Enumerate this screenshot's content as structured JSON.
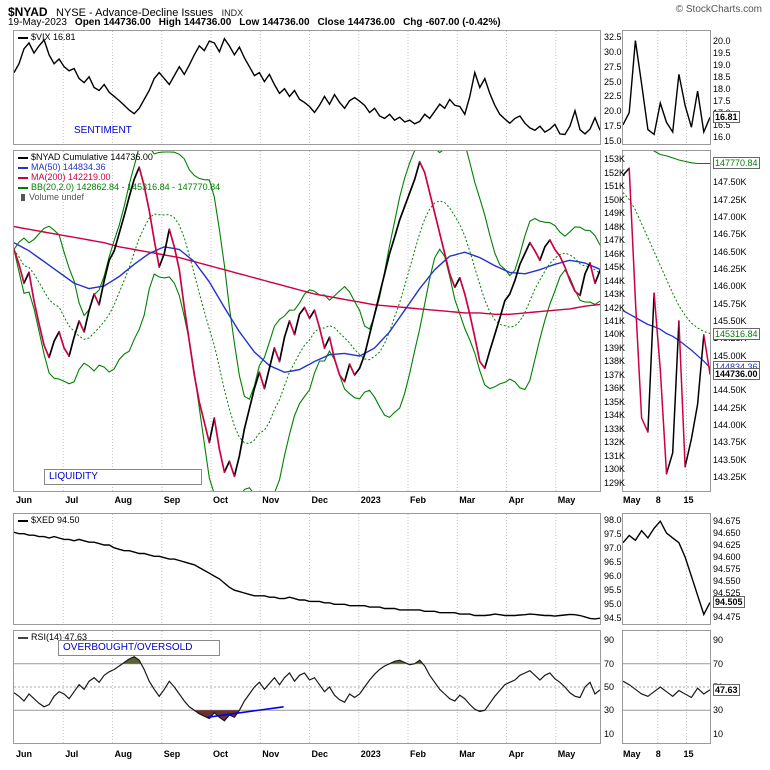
{
  "header": {
    "symbol": "$NYAD",
    "title": "NYSE - Advance-Decline Issues",
    "exchange": "INDX",
    "copyright": "© StockCharts.com",
    "date": "19-May-2023",
    "ohlc": [
      {
        "label": "Open",
        "value": "144736.00"
      },
      {
        "label": "High",
        "value": "144736.00"
      },
      {
        "label": "Low",
        "value": "144736.00"
      },
      {
        "label": "Close",
        "value": "144736.00"
      },
      {
        "label": "Chg",
        "value": "-607.00 (-0.42%)"
      }
    ]
  },
  "annotations": {
    "sentiment": "SENTIMENT",
    "liquidity": "LIQUIDITY",
    "overbought": "OVERBOUGHT/OVERSOLD"
  },
  "months": [
    "Jun",
    "Jul",
    "Aug",
    "Sep",
    "Oct",
    "Nov",
    "Dec",
    "2023",
    "Feb",
    "Mar",
    "Apr",
    "May"
  ],
  "zoom_axis": [
    "May",
    "8",
    "15"
  ],
  "colors": {
    "line": "#000000",
    "ma50": "#2233cc",
    "ma200": "#cc0044",
    "down": "#cc0044",
    "bb": "#008000",
    "grid": "#c4c4c4",
    "border": "#999999",
    "note": "#0000cc",
    "threshold": "#999999",
    "fill_over": "#5a6430",
    "fill_under": "#6b2f2f",
    "volume": "#555555",
    "trend": "#0000ee"
  },
  "chart_data": [
    {
      "id": "vix",
      "type": "line",
      "name": "$VIX",
      "legend": "$VIX 16.81",
      "last": 16.81,
      "ylim": [
        14.5,
        33.5
      ],
      "yticks": [
        [
          "32.5",
          32.5
        ],
        [
          "30.0",
          30
        ],
        [
          "27.5",
          27.5
        ],
        [
          "25.0",
          25
        ],
        [
          "22.5",
          22.5
        ],
        [
          "20.0",
          20
        ],
        [
          "17.5",
          17.5
        ],
        [
          "15.0",
          15
        ]
      ],
      "values": [
        26.5,
        28.0,
        30.5,
        31.5,
        29.8,
        31.0,
        32.0,
        29.5,
        28.0,
        28.8,
        27.5,
        26.8,
        27.2,
        25.5,
        24.8,
        25.8,
        24.0,
        23.5,
        24.5,
        23.2,
        22.5,
        21.8,
        21.0,
        20.2,
        19.6,
        20.5,
        22.0,
        23.5,
        25.5,
        26.5,
        25.5,
        24.5,
        26.0,
        27.5,
        26.2,
        27.8,
        29.5,
        31.0,
        30.2,
        31.8,
        31.5,
        30.0,
        32.2,
        31.0,
        29.5,
        30.8,
        29.0,
        27.5,
        26.0,
        26.5,
        25.0,
        26.2,
        24.5,
        23.0,
        23.8,
        22.5,
        23.5,
        22.0,
        21.5,
        20.8,
        19.8,
        21.0,
        22.5,
        21.2,
        22.8,
        21.5,
        20.5,
        21.8,
        22.3,
        21.7,
        21.0,
        19.8,
        20.5,
        19.2,
        18.8,
        19.5,
        18.5,
        19.0,
        18.2,
        18.5,
        17.9,
        18.3,
        19.5,
        18.8,
        20.0,
        21.2,
        20.5,
        22.0,
        21.0,
        20.8,
        19.5,
        22.5,
        26.5,
        24.0,
        25.5,
        23.0,
        21.0,
        19.5,
        18.7,
        18.0,
        18.8,
        19.2,
        18.0,
        17.2,
        16.8,
        17.5,
        16.5,
        17.0,
        17.8,
        16.2,
        16.1,
        17.5,
        20.1,
        16.9,
        16.2,
        17.0,
        18.9,
        16.81
      ],
      "zoom": {
        "ylim": [
          15.7,
          20.4
        ],
        "yticks": [
          [
            "20.0",
            20
          ],
          [
            "19.5",
            19.5
          ],
          [
            "19.0",
            19
          ],
          [
            "18.5",
            18.5
          ],
          [
            "18.0",
            18
          ],
          [
            "17.5",
            17.5
          ],
          [
            "17.0",
            17
          ],
          [
            "16.5",
            16.5
          ],
          [
            "16.0",
            16
          ]
        ],
        "values": [
          16.5,
          17.0,
          20.0,
          18.2,
          16.3,
          16.1,
          17.4,
          16.6,
          16.2,
          18.6,
          17.3,
          16.4,
          17.9,
          16.2,
          16.81
        ],
        "value_labels": [
          {
            "text": "16.81",
            "value": 16.81,
            "color": "#000000",
            "bold": true
          }
        ]
      }
    },
    {
      "id": "nyad",
      "type": "line-updown",
      "name": "$NYAD Cumulative",
      "legend_items": [
        {
          "label": "$NYAD Cumulative 144736.00",
          "color": "#000000",
          "icon": "line"
        },
        {
          "label": "MA(50) 144834.36",
          "color": "#2233cc",
          "icon": "line"
        },
        {
          "label": "MA(200) 142219.00",
          "color": "#cc0044",
          "icon": "line"
        },
        {
          "label": "BB(20,2.0) 142862.84 - 145316.84 - 147770.84",
          "color": "#008000",
          "icon": "line"
        },
        {
          "label": "Volume undef",
          "color": "#555555",
          "icon": "bar"
        }
      ],
      "ylim": [
        128.4,
        153.6
      ],
      "unit": "K",
      "yticks": [
        [
          "153K",
          153
        ],
        [
          "152K",
          152
        ],
        [
          "151K",
          151
        ],
        [
          "150K",
          150
        ],
        [
          "149K",
          149
        ],
        [
          "148K",
          148
        ],
        [
          "147K",
          147
        ],
        [
          "146K",
          146
        ],
        [
          "145K",
          145
        ],
        [
          "144K",
          144
        ],
        [
          "143K",
          143
        ],
        [
          "142K",
          142
        ],
        [
          "141K",
          141
        ],
        [
          "140K",
          140
        ],
        [
          "139K",
          139
        ],
        [
          "138K",
          138
        ],
        [
          "137K",
          137
        ],
        [
          "136K",
          136
        ],
        [
          "135K",
          135
        ],
        [
          "134K",
          134
        ],
        [
          "133K",
          133
        ],
        [
          "132K",
          132
        ],
        [
          "131K",
          131
        ],
        [
          "130K",
          130
        ],
        [
          "129K",
          129
        ]
      ],
      "values": [
        146.3,
        145.2,
        143.8,
        144.6,
        142.5,
        140.8,
        139.2,
        138.3,
        139.5,
        140.2,
        139.0,
        138.4,
        139.8,
        141.0,
        140.2,
        141.8,
        143.0,
        142.2,
        144.0,
        145.5,
        146.2,
        147.5,
        148.8,
        150.2,
        151.5,
        152.4,
        151.0,
        149.2,
        147.0,
        145.0,
        146.0,
        147.8,
        146.5,
        144.8,
        142.0,
        139.5,
        137.0,
        135.0,
        133.5,
        132.0,
        133.8,
        131.5,
        129.8,
        130.6,
        129.5,
        131.0,
        133.0,
        134.5,
        136.0,
        137.2,
        136.0,
        137.5,
        139.0,
        138.0,
        139.8,
        141.0,
        140.0,
        141.5,
        142.0,
        141.2,
        141.8,
        140.5,
        139.0,
        139.8,
        138.2,
        137.0,
        136.5,
        137.8,
        137.0,
        137.5,
        138.5,
        140.0,
        141.5,
        143.0,
        144.5,
        146.0,
        147.2,
        148.5,
        149.5,
        150.5,
        151.5,
        152.8,
        152.0,
        150.5,
        149.0,
        147.5,
        146.0,
        144.5,
        143.5,
        144.2,
        143.0,
        141.5,
        139.8,
        138.0,
        137.5,
        138.8,
        140.0,
        141.2,
        142.5,
        143.0,
        144.0,
        145.2,
        146.0,
        146.8,
        146.2,
        145.5,
        146.5,
        147.0,
        146.3,
        145.8,
        145.0,
        144.0,
        143.2,
        142.9,
        144.5,
        145.3,
        143.8,
        144.736
      ],
      "ma50": [
        146.8,
        146.2,
        145.4,
        144.6,
        143.8,
        143.4,
        143.6,
        144.3,
        145.2,
        146.0,
        146.5,
        146.3,
        145.4,
        143.9,
        142.0,
        140.2,
        138.7,
        137.7,
        137.2,
        137.4,
        138.0,
        138.5,
        138.6,
        138.4,
        139.0,
        140.2,
        141.8,
        143.4,
        144.8,
        145.8,
        146.1,
        145.7,
        145.1,
        144.6,
        144.5,
        144.8,
        145.2,
        145.5,
        145.3,
        144.83
      ],
      "ma200": [
        148.0,
        147.8,
        147.6,
        147.4,
        147.2,
        147.0,
        146.8,
        146.5,
        146.3,
        146.1,
        145.9,
        145.7,
        145.4,
        145.1,
        144.8,
        144.5,
        144.2,
        143.9,
        143.6,
        143.3,
        143.0,
        142.8,
        142.6,
        142.4,
        142.2,
        142.1,
        142.0,
        141.9,
        141.8,
        141.7,
        141.6,
        141.6,
        141.5,
        141.5,
        141.6,
        141.7,
        141.8,
        141.9,
        142.1,
        142.22
      ],
      "zoom": {
        "ylim": [
          143.05,
          147.95
        ],
        "yticks": [
          [
            "147.50K",
            147.5
          ],
          [
            "147.25K",
            147.25
          ],
          [
            "147.00K",
            147
          ],
          [
            "146.75K",
            146.75
          ],
          [
            "146.50K",
            146.5
          ],
          [
            "146.25K",
            146.25
          ],
          [
            "146.00K",
            146
          ],
          [
            "145.75K",
            145.75
          ],
          [
            "145.50K",
            145.5
          ],
          [
            "145.25K",
            145.25
          ],
          [
            "145.00K",
            145
          ],
          [
            "144.75K",
            144.75
          ],
          [
            "144.50K",
            144.5
          ],
          [
            "144.25K",
            144.25
          ],
          [
            "144.00K",
            144
          ],
          [
            "143.75K",
            143.75
          ],
          [
            "143.50K",
            143.5
          ],
          [
            "143.25K",
            143.25
          ]
        ],
        "values": [
          147.6,
          147.7,
          145.8,
          144.1,
          143.9,
          145.9,
          144.8,
          143.3,
          143.6,
          145.5,
          143.4,
          143.8,
          144.3,
          145.3,
          144.736
        ],
        "ma50": [
          145.65,
          145.6,
          145.55,
          145.5,
          145.45,
          145.42,
          145.38,
          145.32,
          145.28,
          145.22,
          145.15,
          145.08,
          145.0,
          144.92,
          144.83
        ],
        "bbmid": [
          147.35,
          147.25,
          147.1,
          146.9,
          146.7,
          146.5,
          146.3,
          146.1,
          145.9,
          145.72,
          145.58,
          145.47,
          145.4,
          145.35,
          145.32
        ],
        "bbupper": [
          148.4,
          148.3,
          148.2,
          148.1,
          148.0,
          147.95,
          147.9,
          147.88,
          147.85,
          147.82,
          147.8,
          147.78,
          147.77,
          147.77,
          147.77
        ],
        "value_labels": [
          {
            "text": "147770.84",
            "value": 147.77,
            "color": "#008000"
          },
          {
            "text": "145316.84",
            "value": 145.316,
            "color": "#008000"
          },
          {
            "text": "144834.36",
            "value": 144.834,
            "color": "#2233cc"
          },
          {
            "text": "144736.00",
            "value": 144.736,
            "color": "#000000",
            "bold": true
          }
        ]
      }
    },
    {
      "id": "xed",
      "type": "line",
      "name": "$XED",
      "legend": "$XED 94.50",
      "last": 94.505,
      "ylim": [
        94.3,
        98.2
      ],
      "yticks": [
        [
          "98.0",
          98
        ],
        [
          "97.5",
          97.5
        ],
        [
          "97.0",
          97
        ],
        [
          "96.5",
          96.5
        ],
        [
          "96.0",
          96
        ],
        [
          "95.5",
          95.5
        ],
        [
          "95.0",
          95
        ],
        [
          "94.5",
          94.5
        ]
      ],
      "values": [
        97.55,
        97.5,
        97.5,
        97.45,
        97.45,
        97.4,
        97.4,
        97.35,
        97.4,
        97.35,
        97.3,
        97.3,
        97.25,
        97.3,
        97.25,
        97.2,
        97.2,
        97.15,
        97.1,
        97.1,
        97.0,
        96.95,
        96.9,
        96.9,
        96.85,
        96.8,
        96.8,
        96.75,
        96.7,
        96.7,
        96.65,
        96.6,
        96.6,
        96.55,
        96.5,
        96.45,
        96.4,
        96.3,
        96.2,
        96.1,
        96.0,
        95.9,
        95.75,
        95.6,
        95.5,
        95.45,
        95.4,
        95.35,
        95.3,
        95.3,
        95.3,
        95.25,
        95.25,
        95.2,
        95.2,
        95.25,
        95.2,
        95.15,
        95.15,
        95.1,
        95.1,
        95.1,
        95.05,
        95.05,
        95.0,
        95.0,
        95.0,
        94.95,
        94.95,
        94.95,
        94.95,
        94.9,
        94.9,
        94.9,
        94.85,
        94.85,
        94.85,
        94.8,
        94.8,
        94.8,
        94.8,
        94.8,
        94.75,
        94.75,
        94.75,
        94.7,
        94.7,
        94.7,
        94.7,
        94.65,
        94.65,
        94.65,
        94.6,
        94.6,
        94.6,
        94.62,
        94.65,
        94.63,
        94.6,
        94.6,
        94.6,
        94.62,
        94.63,
        94.65,
        94.64,
        94.62,
        94.6,
        94.6,
        94.58,
        94.6,
        94.62,
        94.64,
        94.63,
        94.6,
        94.55,
        94.5,
        94.48,
        94.505
      ],
      "zoom": {
        "ylim": [
          94.46,
          94.69
        ],
        "yticks": [
          [
            "94.675",
            94.675
          ],
          [
            "94.650",
            94.65
          ],
          [
            "94.625",
            94.625
          ],
          [
            "94.600",
            94.6
          ],
          [
            "94.575",
            94.575
          ],
          [
            "94.550",
            94.55
          ],
          [
            "94.525",
            94.525
          ],
          [
            "94.500",
            94.5
          ],
          [
            "94.475",
            94.475
          ]
        ],
        "values": [
          94.63,
          94.645,
          94.635,
          94.655,
          94.64,
          94.66,
          94.675,
          94.65,
          94.64,
          94.63,
          94.6,
          94.56,
          94.52,
          94.48,
          94.505
        ],
        "value_labels": [
          {
            "text": "94.505",
            "value": 94.505,
            "color": "#000000",
            "bold": true
          }
        ]
      }
    },
    {
      "id": "rsi",
      "type": "line",
      "name": "RSI(14)",
      "legend": "RSI(14) 47.63",
      "last": 47.63,
      "ylim": [
        2,
        98
      ],
      "thresholds": [
        70,
        50,
        30
      ],
      "yticks": [
        [
          "90",
          90
        ],
        [
          "70",
          70
        ],
        [
          "50",
          50
        ],
        [
          "30",
          30
        ],
        [
          "10",
          10
        ]
      ],
      "values": [
        45,
        42,
        38,
        44,
        40,
        36,
        33,
        35,
        42,
        46,
        44,
        40,
        46,
        52,
        48,
        55,
        58,
        54,
        60,
        63,
        65,
        68,
        71,
        74,
        76,
        73,
        65,
        55,
        48,
        42,
        48,
        55,
        50,
        44,
        38,
        33,
        30,
        27,
        25,
        23,
        28,
        24,
        21,
        26,
        24,
        30,
        38,
        44,
        50,
        54,
        48,
        53,
        58,
        52,
        58,
        62,
        55,
        60,
        62,
        56,
        58,
        52,
        46,
        50,
        43,
        39,
        37,
        44,
        41,
        44,
        50,
        56,
        61,
        65,
        68,
        70,
        72,
        73,
        71,
        69,
        70,
        73,
        68,
        60,
        54,
        48,
        44,
        40,
        38,
        43,
        40,
        35,
        31,
        29,
        30,
        36,
        42,
        47,
        52,
        54,
        56,
        60,
        62,
        64,
        60,
        56,
        60,
        62,
        57,
        54,
        50,
        45,
        42,
        41,
        50,
        54,
        44,
        47.63
      ],
      "trendline": {
        "x1": 0.33,
        "y1": 24,
        "x2": 0.46,
        "y2": 33
      },
      "zoom": {
        "ylim": [
          2,
          98
        ],
        "thresholds": [
          70,
          50,
          30
        ],
        "yticks": [
          [
            "90",
            90
          ],
          [
            "70",
            70
          ],
          [
            "50",
            50
          ],
          [
            "30",
            30
          ],
          [
            "10",
            10
          ]
        ],
        "values": [
          55,
          52,
          48,
          44,
          42,
          46,
          50,
          46,
          42,
          47,
          44,
          41,
          49,
          44,
          47.63
        ],
        "value_labels": [
          {
            "text": "47.63",
            "value": 47.63,
            "color": "#000000",
            "bold": true
          }
        ]
      }
    }
  ]
}
